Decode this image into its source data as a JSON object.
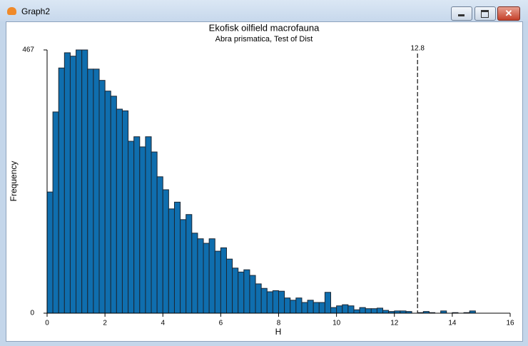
{
  "window": {
    "title": "Graph2"
  },
  "chart_data": {
    "type": "histogram",
    "title": "Ekofisk oilfield macrofauna",
    "subtitle": "Abra prismatica, Test of Dist",
    "x_label": "H",
    "y_label": "Frequency",
    "bins": [
      0,
      0.2,
      0.4,
      0.6,
      0.8,
      1,
      1.2,
      1.4,
      1.6,
      1.8,
      2,
      2.2,
      2.4,
      2.6,
      2.8,
      3,
      3.2,
      3.4,
      3.6,
      3.8,
      4,
      4.2,
      4.4,
      4.6,
      4.8,
      5,
      5.2,
      5.4,
      5.6,
      5.8,
      6,
      6.2,
      6.4,
      6.6,
      6.8,
      7,
      7.2,
      7.4,
      7.6,
      7.8,
      8,
      8.2,
      8.4,
      8.6,
      8.8,
      9,
      9.2,
      9.4,
      9.6,
      9.8,
      10,
      10.2,
      10.4,
      10.6,
      10.8,
      11,
      11.2,
      11.4,
      11.6,
      11.8,
      12,
      12.2,
      12.4,
      12.6,
      12.8,
      13,
      13.2,
      13.4,
      13.6,
      13.8,
      14,
      14.2,
      14.4,
      14.6,
      14.8,
      15
    ],
    "values": [
      215,
      357,
      435,
      462,
      456,
      467,
      467,
      433,
      433,
      413,
      394,
      385,
      362,
      359,
      305,
      313,
      295,
      313,
      286,
      242,
      219,
      185,
      197,
      166,
      175,
      142,
      132,
      124,
      132,
      110,
      116,
      96,
      80,
      73,
      77,
      67,
      52,
      44,
      38,
      40,
      39,
      27,
      23,
      27,
      19,
      23,
      19,
      19,
      37,
      10,
      13,
      15,
      13,
      6,
      10,
      8,
      8,
      9,
      5,
      3,
      4,
      4,
      3,
      0,
      1,
      3,
      1,
      0,
      4,
      0,
      1,
      0,
      1,
      4,
      0
    ],
    "color": "#0f6eae",
    "xlim": [
      0,
      16
    ],
    "xticks": [
      0,
      2,
      4,
      6,
      8,
      10,
      12,
      14,
      16
    ],
    "ylim": [
      0,
      467
    ],
    "yticks": [
      0,
      467
    ],
    "grid": false,
    "marker": 12.8
  }
}
